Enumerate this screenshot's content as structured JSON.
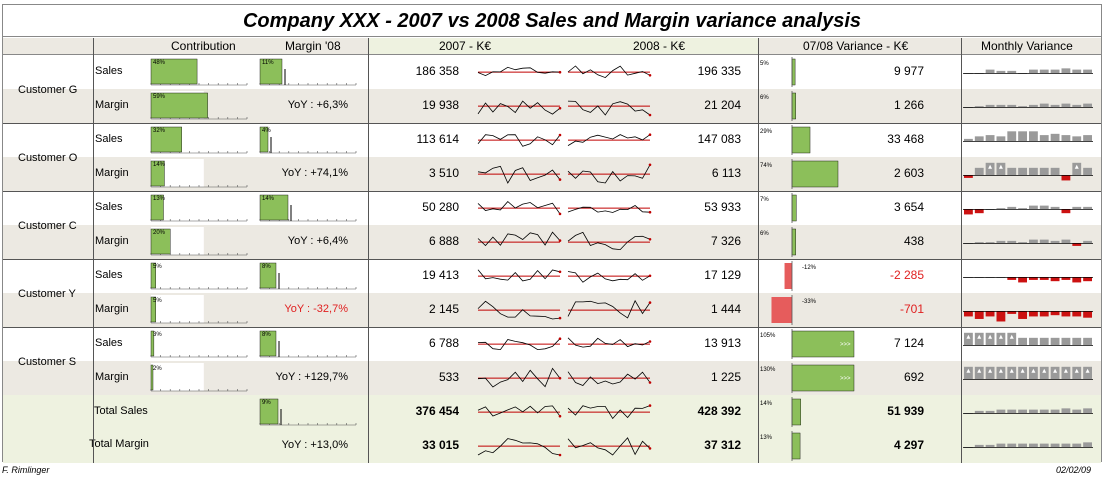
{
  "title": "Company XXX - 2007 vs 2008 Sales and Margin variance analysis",
  "headers": {
    "contribution": "Contribution",
    "margin08": "Margin '08",
    "y2007": "2007 - K€",
    "y2008": "2008 - K€",
    "variance": "07/08 Variance - K€",
    "monthly": "Monthly Variance"
  },
  "footer": {
    "author": "F. Rimlinger",
    "date": "02/02/09"
  },
  "colors": {
    "green": "#8cbf5a",
    "red": "#e65c5c",
    "gray": "#9a9a9a",
    "line_red": "#c00000",
    "band": "#ece9e2",
    "total_band": "#eef2e0"
  },
  "chart_data": {
    "type": "table",
    "title": "Company XXX - 2007 vs 2008 Sales and Margin variance analysis",
    "customers": [
      {
        "name": "Customer G",
        "sales": {
          "label": "Sales",
          "contribution_pct": "48%",
          "contribution": 0.48,
          "margin_pct": "11%",
          "margin": 0.11,
          "v2007": "186 358",
          "v2008": "196 335",
          "variance_pct": "5%",
          "variance_ratio": 0.05,
          "variance": "9 977",
          "monthly": [
            0,
            0,
            0.3,
            0.2,
            0.2,
            0,
            0.3,
            0.3,
            0.3,
            0.4,
            0.3,
            0.3
          ]
        },
        "margin": {
          "label": "Margin",
          "contribution_pct": "59%",
          "contribution": 0.59,
          "yoy": "YoY : +6,3%",
          "v2007": "19 938",
          "v2008": "21 204",
          "variance_pct": "6%",
          "variance_ratio": 0.06,
          "variance": "1 266",
          "monthly": [
            0,
            0.1,
            0.2,
            0.2,
            0.2,
            0.1,
            0.2,
            0.3,
            0.2,
            0.3,
            0.2,
            0.3
          ]
        }
      },
      {
        "name": "Customer O",
        "sales": {
          "label": "Sales",
          "contribution_pct": "32%",
          "contribution": 0.32,
          "margin_pct": "4%",
          "margin": 0.04,
          "v2007": "113 614",
          "v2008": "147 083",
          "variance_pct": "29%",
          "variance_ratio": 0.29,
          "variance": "33 468",
          "monthly": [
            0.2,
            0.4,
            0.5,
            0.4,
            0.8,
            0.8,
            0.8,
            0.5,
            0.6,
            0.5,
            0.4,
            0.5
          ]
        },
        "margin": {
          "label": "Margin",
          "contribution_pct": "14%",
          "contribution": 0.14,
          "yoy": "YoY : +74,1%",
          "v2007": "3 510",
          "v2008": "6 113",
          "variance_pct": "74%",
          "variance_ratio": 0.74,
          "variance": "2 603",
          "monthly": [
            -0.2,
            0.6,
            1,
            1,
            0.6,
            0.6,
            0.6,
            0.6,
            0.6,
            -0.4,
            1,
            0.6
          ]
        }
      },
      {
        "name": "Customer C",
        "sales": {
          "label": "Sales",
          "contribution_pct": "13%",
          "contribution": 0.13,
          "margin_pct": "14%",
          "margin": 0.14,
          "v2007": "50 280",
          "v2008": "53 933",
          "variance_pct": "7%",
          "variance_ratio": 0.07,
          "variance": "3 654",
          "monthly": [
            -0.4,
            -0.3,
            0,
            0.1,
            0.2,
            0.1,
            0.3,
            0.3,
            0.2,
            -0.3,
            0.2,
            0.2
          ]
        },
        "margin": {
          "label": "Margin",
          "contribution_pct": "20%",
          "contribution": 0.2,
          "yoy": "YoY : +6,4%",
          "v2007": "6 888",
          "v2008": "7 326",
          "variance_pct": "6%",
          "variance_ratio": 0.06,
          "variance": "438",
          "monthly": [
            0,
            0.1,
            0.1,
            0.2,
            0.2,
            0.1,
            0.3,
            0.3,
            0.2,
            0.3,
            -0.2,
            0.2
          ]
        }
      },
      {
        "name": "Customer Y",
        "sales": {
          "label": "Sales",
          "contribution_pct": "5%",
          "contribution": 0.05,
          "margin_pct": "8%",
          "margin": 0.08,
          "v2007": "19 413",
          "v2008": "17 129",
          "variance_pct": "-12%",
          "variance_ratio": -0.12,
          "variance": "-2 285",
          "monthly": [
            0,
            0,
            0,
            0,
            -0.2,
            -0.4,
            -0.2,
            -0.2,
            -0.3,
            -0.2,
            -0.4,
            -0.3
          ]
        },
        "margin": {
          "label": "Margin",
          "contribution_pct": "5%",
          "contribution": 0.05,
          "yoy": "YoY : -32,7%",
          "v2007": "2 145",
          "v2008": "1 444",
          "variance_pct": "-33%",
          "variance_ratio": -0.33,
          "variance": "-701",
          "monthly": [
            -0.4,
            -0.6,
            -0.4,
            -0.8,
            -0.2,
            -0.6,
            -0.4,
            -0.4,
            -0.3,
            -0.4,
            -0.4,
            -0.5
          ]
        }
      },
      {
        "name": "Customer S",
        "sales": {
          "label": "Sales",
          "contribution_pct": "3%",
          "contribution": 0.03,
          "margin_pct": "8%",
          "margin": 0.08,
          "v2007": "6 788",
          "v2008": "13 913",
          "variance_pct": "105%",
          "variance_ratio": 1.05,
          "variance": "7 124",
          "monthly": [
            1,
            1,
            1,
            1,
            1,
            0.6,
            0.6,
            0.6,
            0.6,
            0.6,
            0.6,
            0.6
          ]
        },
        "margin": {
          "label": "Margin",
          "contribution_pct": "2%",
          "contribution": 0.02,
          "yoy": "YoY : +129,7%",
          "v2007": "533",
          "v2008": "1 225",
          "variance_pct": "130%",
          "variance_ratio": 1.3,
          "variance": "692",
          "monthly": [
            1,
            1,
            1,
            1,
            1,
            1,
            1,
            1,
            1,
            1,
            1,
            1
          ]
        }
      }
    ],
    "totals": {
      "sales": {
        "label": "Total Sales",
        "margin_pct": "9%",
        "margin": 0.09,
        "v2007": "376 454",
        "v2008": "428 392",
        "variance_pct": "14%",
        "variance_ratio": 0.14,
        "variance": "51 939",
        "monthly": [
          0,
          0.2,
          0.2,
          0.3,
          0.3,
          0.3,
          0.3,
          0.3,
          0.3,
          0.4,
          0.3,
          0.4
        ]
      },
      "margin": {
        "label": "Total Margin",
        "yoy": "YoY : +13,0%",
        "v2007": "33 015",
        "v2008": "37 312",
        "variance_pct": "13%",
        "variance_ratio": 0.13,
        "variance": "4 297",
        "monthly": [
          0,
          0.2,
          0.2,
          0.3,
          0.3,
          0.3,
          0.3,
          0.3,
          0.3,
          0.3,
          0.3,
          0.4
        ]
      }
    }
  }
}
